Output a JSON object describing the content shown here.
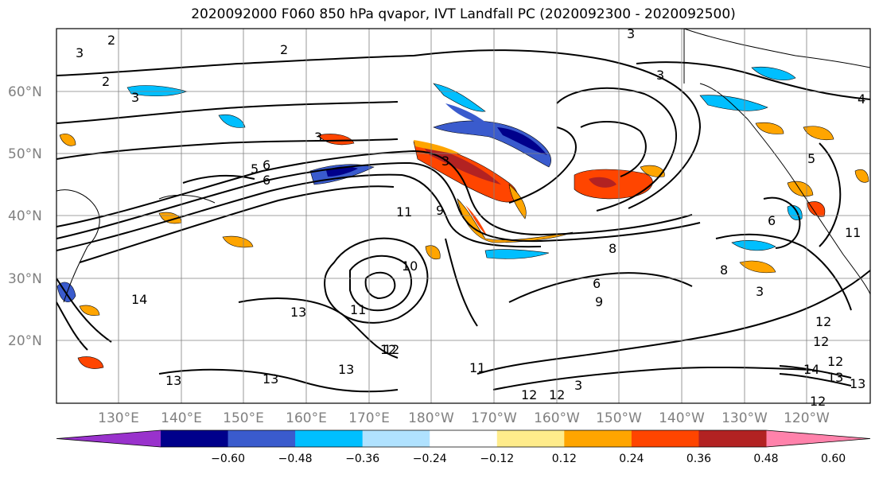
{
  "title": "2020092000 F060 850 hPa qvapor, IVT Landfall PC (2020092300 - 2020092500)",
  "map": {
    "lon_ticks": [
      "130°E",
      "140°E",
      "150°E",
      "160°E",
      "170°E",
      "180°W",
      "170°W",
      "160°W",
      "150°W",
      "140°W",
      "130°W",
      "120°W"
    ],
    "lat_ticks": [
      "60°N",
      "50°N",
      "40°N",
      "30°N",
      "20°N"
    ],
    "contour_labels": [
      "2",
      "3",
      "2",
      "3",
      "3",
      "4",
      "2",
      "3",
      "5",
      "6",
      "11",
      "11",
      "10",
      "9",
      "13",
      "14",
      "13",
      "13",
      "12",
      "13",
      "12",
      "12",
      "12",
      "11",
      "13",
      "3",
      "9",
      "6",
      "8",
      "6",
      "6",
      "3",
      "3",
      "5",
      "11",
      "12",
      "12",
      "13",
      "12",
      "14",
      "12",
      "3",
      "8"
    ]
  },
  "colorbar": {
    "tick_labels": [
      "−0.60",
      "−0.48",
      "−0.36",
      "−0.24",
      "−0.12",
      "0.12",
      "0.24",
      "0.36",
      "0.48",
      "0.60"
    ],
    "colors": [
      "#9932cc",
      "#00008b",
      "#3a5bcd",
      "#00bfff",
      "#b0e2ff",
      "#ffffff",
      "#ffec8b",
      "#ffa500",
      "#ff4500",
      "#b22222",
      "#ff82ab"
    ]
  },
  "colors": {
    "frame": "#000000",
    "grid": "#808080",
    "land": "#000000"
  }
}
